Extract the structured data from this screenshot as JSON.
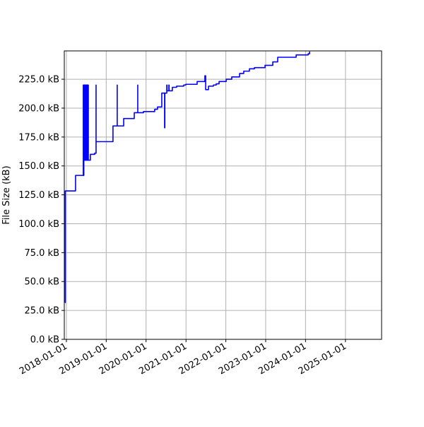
{
  "chart_data": {
    "type": "line",
    "title": "",
    "xlabel": "",
    "ylabel": "File Size (kB)",
    "xlim": [
      "2017-12-13",
      "2025-11-28"
    ],
    "ylim": [
      0,
      249.5
    ],
    "grid": true,
    "line_color": "#0000ff",
    "step": "post",
    "x_ticks": [
      "2018-01-01",
      "2019-01-01",
      "2020-01-01",
      "2021-01-01",
      "2022-01-01",
      "2023-01-01",
      "2024-01-01",
      "2025-01-01"
    ],
    "y_ticks": [
      0,
      25,
      50,
      75,
      100,
      125,
      150,
      175,
      200,
      225
    ],
    "y_tick_labels": [
      "0.0 kB",
      "25.0 kB",
      "50.0 kB",
      "75.0 kB",
      "100.0 kB",
      "125.0 kB",
      "150.0 kB",
      "175.0 kB",
      "200.0 kB",
      "225.0 kB"
    ],
    "series": [
      {
        "points": [
          [
            "2017-12-19",
            31.8
          ],
          [
            "2017-12-22",
            128.4
          ],
          [
            "2018-03-26",
            141.8
          ],
          [
            "2018-06-05",
            220
          ],
          [
            "2018-06-08",
            141.8
          ],
          [
            "2018-06-10",
            220
          ],
          [
            "2018-06-14",
            155
          ],
          [
            "2018-06-16",
            220
          ],
          [
            "2018-06-20",
            155
          ],
          [
            "2018-06-24",
            220
          ],
          [
            "2018-06-28",
            155
          ],
          [
            "2018-07-02",
            220
          ],
          [
            "2018-07-06",
            155
          ],
          [
            "2018-07-10",
            220
          ],
          [
            "2018-07-14",
            155
          ],
          [
            "2018-07-17",
            220
          ],
          [
            "2018-07-21",
            155
          ],
          [
            "2018-08-09",
            160
          ],
          [
            "2018-09-17",
            161
          ],
          [
            "2018-09-30",
            220
          ],
          [
            "2018-09-30",
            171
          ],
          [
            "2019-03-04",
            184.6
          ],
          [
            "2019-04-12",
            220
          ],
          [
            "2019-04-12",
            184.6
          ],
          [
            "2019-06-10",
            191
          ],
          [
            "2019-09-15",
            196
          ],
          [
            "2019-10-17",
            220
          ],
          [
            "2019-10-17",
            196
          ],
          [
            "2019-12-08",
            197
          ],
          [
            "2020-03-20",
            199
          ],
          [
            "2020-04-15",
            201
          ],
          [
            "2020-05-24",
            213
          ],
          [
            "2020-06-19",
            183
          ],
          [
            "2020-06-21",
            213
          ],
          [
            "2020-07-09",
            220
          ],
          [
            "2020-07-11",
            215
          ],
          [
            "2020-07-28",
            220
          ],
          [
            "2020-07-30",
            215
          ],
          [
            "2020-08-29",
            218
          ],
          [
            "2020-10-07",
            219
          ],
          [
            "2020-12-11",
            220
          ],
          [
            "2020-12-30",
            220.6
          ],
          [
            "2021-04-13",
            223
          ],
          [
            "2021-06-23",
            228
          ],
          [
            "2021-06-30",
            216
          ],
          [
            "2021-07-26",
            219
          ],
          [
            "2021-09-09",
            220
          ],
          [
            "2021-10-05",
            221
          ],
          [
            "2021-10-31",
            223
          ],
          [
            "2022-01-04",
            225
          ],
          [
            "2022-02-24",
            227
          ],
          [
            "2022-05-07",
            230
          ],
          [
            "2022-06-14",
            232
          ],
          [
            "2022-08-05",
            234
          ],
          [
            "2022-09-20",
            235
          ],
          [
            "2022-12-26",
            237
          ],
          [
            "2023-03-07",
            240
          ],
          [
            "2023-04-21",
            244
          ],
          [
            "2023-10-07",
            246
          ],
          [
            "2024-01-25",
            247
          ],
          [
            "2024-02-07",
            249
          ]
        ]
      }
    ]
  }
}
